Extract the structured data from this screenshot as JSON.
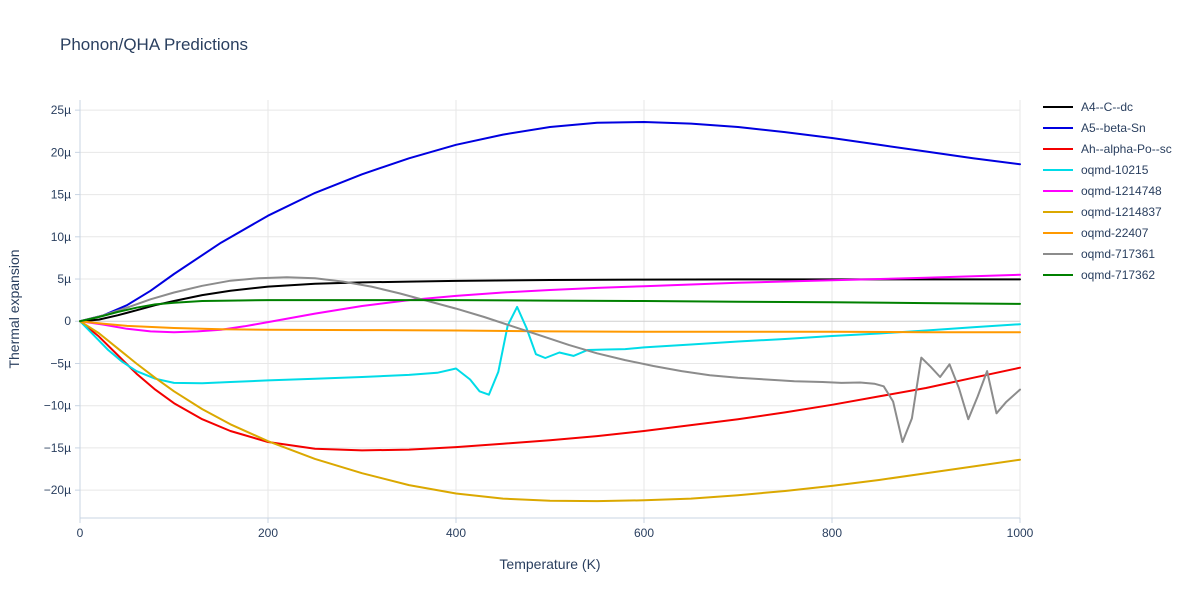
{
  "chart_data": {
    "type": "line",
    "title": "Phonon/QHA Predictions",
    "xlabel": "Temperature (K)",
    "ylabel": "Thermal expansion",
    "xlim": [
      0,
      1000
    ],
    "ylim_mu": [
      -23.3,
      26.2
    ],
    "grid": true,
    "legend_position": "right",
    "x_tick_values": [
      0,
      200,
      400,
      600,
      800,
      1000
    ],
    "x_tick_labels": [
      "0",
      "200",
      "400",
      "600",
      "800",
      "1000"
    ],
    "y_tick_values": [
      25,
      20,
      15,
      10,
      5,
      0,
      -5,
      -10,
      -15,
      -20
    ],
    "y_tick_labels": [
      "25µ",
      "20µ",
      "15µ",
      "10µ",
      "5µ",
      "0",
      "−5µ",
      "−10µ",
      "−15µ",
      "−20µ"
    ],
    "colors": {
      "text": "#2a3f5f",
      "grid": "#e7e7e7",
      "zeroline": "#cfcfcf",
      "axis_line": "#c8d4e3",
      "background": "#ffffff"
    },
    "series": [
      {
        "name": "A4--C--dc",
        "color": "#000000",
        "x": [
          0,
          20,
          40,
          60,
          80,
          100,
          130,
          160,
          200,
          250,
          300,
          350,
          400,
          500,
          600,
          700,
          800,
          900,
          1000
        ],
        "y": [
          0,
          0.2,
          0.7,
          1.3,
          1.9,
          2.4,
          3.1,
          3.6,
          4.1,
          4.45,
          4.6,
          4.7,
          4.78,
          4.88,
          4.93,
          4.95,
          4.95,
          4.95,
          4.95
        ]
      },
      {
        "name": "A5--beta-Sn",
        "color": "#0000e0",
        "x": [
          0,
          25,
          50,
          75,
          100,
          150,
          200,
          250,
          300,
          350,
          400,
          450,
          500,
          550,
          600,
          650,
          700,
          750,
          800,
          850,
          900,
          950,
          1000
        ],
        "y": [
          0,
          0.7,
          1.9,
          3.6,
          5.6,
          9.3,
          12.5,
          15.2,
          17.4,
          19.3,
          20.9,
          22.1,
          23.0,
          23.5,
          23.6,
          23.4,
          23.0,
          22.4,
          21.7,
          20.9,
          20.1,
          19.3,
          18.6
        ]
      },
      {
        "name": "Ah--alpha-Po--sc",
        "color": "#f40000",
        "x": [
          0,
          20,
          40,
          60,
          80,
          100,
          130,
          160,
          200,
          250,
          300,
          350,
          400,
          450,
          500,
          550,
          600,
          650,
          700,
          750,
          800,
          850,
          900,
          950,
          1000
        ],
        "y": [
          0,
          -1.8,
          -4.0,
          -6.2,
          -8.1,
          -9.7,
          -11.6,
          -13.0,
          -14.3,
          -15.1,
          -15.3,
          -15.2,
          -14.9,
          -14.5,
          -14.1,
          -13.6,
          -13.0,
          -12.3,
          -11.6,
          -10.8,
          -9.9,
          -8.9,
          -7.9,
          -6.7,
          -5.5
        ]
      },
      {
        "name": "oqmd-10215",
        "color": "#00dce8",
        "x": [
          0,
          15,
          30,
          45,
          60,
          80,
          100,
          130,
          160,
          200,
          250,
          300,
          350,
          380,
          400,
          415,
          425,
          435,
          445,
          455,
          465,
          475,
          485,
          495,
          510,
          525,
          540,
          560,
          580,
          600,
          650,
          700,
          750,
          800,
          850,
          900,
          950,
          1000
        ],
        "y": [
          0,
          -1.7,
          -3.4,
          -4.8,
          -5.9,
          -6.8,
          -7.3,
          -7.35,
          -7.2,
          -7.0,
          -6.8,
          -6.6,
          -6.35,
          -6.1,
          -5.6,
          -6.9,
          -8.3,
          -8.7,
          -6.0,
          -0.5,
          1.7,
          -0.8,
          -3.9,
          -4.35,
          -3.7,
          -4.1,
          -3.4,
          -3.35,
          -3.3,
          -3.1,
          -2.75,
          -2.4,
          -2.1,
          -1.75,
          -1.45,
          -1.1,
          -0.7,
          -0.35
        ]
      },
      {
        "name": "oqmd-1214748",
        "color": "#ff00ff",
        "x": [
          0,
          25,
          50,
          75,
          100,
          125,
          150,
          175,
          200,
          250,
          300,
          350,
          400,
          450,
          500,
          550,
          600,
          700,
          800,
          900,
          1000
        ],
        "y": [
          0,
          -0.4,
          -0.9,
          -1.2,
          -1.3,
          -1.2,
          -1.0,
          -0.6,
          -0.1,
          0.9,
          1.8,
          2.5,
          3.0,
          3.4,
          3.7,
          3.95,
          4.15,
          4.55,
          4.85,
          5.15,
          5.5
        ]
      },
      {
        "name": "oqmd-1214837",
        "color": "#dba800",
        "x": [
          0,
          20,
          40,
          60,
          80,
          100,
          130,
          160,
          200,
          250,
          300,
          350,
          400,
          450,
          500,
          550,
          600,
          650,
          700,
          750,
          800,
          850,
          900,
          950,
          1000
        ],
        "y": [
          0,
          -1.4,
          -3.2,
          -5.0,
          -6.7,
          -8.3,
          -10.4,
          -12.2,
          -14.2,
          -16.3,
          -18.0,
          -19.4,
          -20.4,
          -21.0,
          -21.25,
          -21.3,
          -21.2,
          -21.0,
          -20.6,
          -20.1,
          -19.5,
          -18.8,
          -18.0,
          -17.2,
          -16.4
        ]
      },
      {
        "name": "oqmd-22407",
        "color": "#ff9900",
        "x": [
          0,
          25,
          50,
          100,
          150,
          200,
          300,
          400,
          500,
          600,
          700,
          800,
          900,
          1000
        ],
        "y": [
          0,
          -0.3,
          -0.55,
          -0.8,
          -0.95,
          -1.0,
          -1.05,
          -1.1,
          -1.2,
          -1.25,
          -1.25,
          -1.25,
          -1.3,
          -1.3
        ]
      },
      {
        "name": "oqmd-717361",
        "color": "#8c8c8c",
        "x": [
          0,
          25,
          50,
          75,
          100,
          130,
          160,
          190,
          220,
          250,
          280,
          310,
          340,
          370,
          400,
          430,
          460,
          490,
          520,
          550,
          580,
          610,
          640,
          670,
          700,
          730,
          760,
          790,
          810,
          830,
          845,
          855,
          865,
          875,
          885,
          895,
          905,
          915,
          925,
          935,
          945,
          955,
          965,
          975,
          985,
          1000
        ],
        "y": [
          0,
          0.7,
          1.6,
          2.6,
          3.4,
          4.2,
          4.8,
          5.1,
          5.2,
          5.1,
          4.7,
          4.1,
          3.3,
          2.4,
          1.5,
          0.5,
          -0.6,
          -1.7,
          -2.8,
          -3.8,
          -4.6,
          -5.3,
          -5.9,
          -6.4,
          -6.7,
          -6.9,
          -7.1,
          -7.2,
          -7.3,
          -7.25,
          -7.4,
          -7.7,
          -9.5,
          -14.3,
          -11.5,
          -4.3,
          -5.4,
          -6.6,
          -5.1,
          -7.9,
          -11.6,
          -8.9,
          -5.9,
          -10.9,
          -9.6,
          -8.1
        ]
      },
      {
        "name": "oqmd-717362",
        "color": "#008000",
        "x": [
          0,
          20,
          40,
          60,
          80,
          100,
          130,
          160,
          200,
          300,
          400,
          500,
          600,
          700,
          800,
          900,
          1000
        ],
        "y": [
          0,
          0.5,
          1.1,
          1.6,
          2.0,
          2.2,
          2.4,
          2.45,
          2.5,
          2.5,
          2.5,
          2.45,
          2.4,
          2.3,
          2.25,
          2.15,
          2.05
        ]
      }
    ]
  }
}
